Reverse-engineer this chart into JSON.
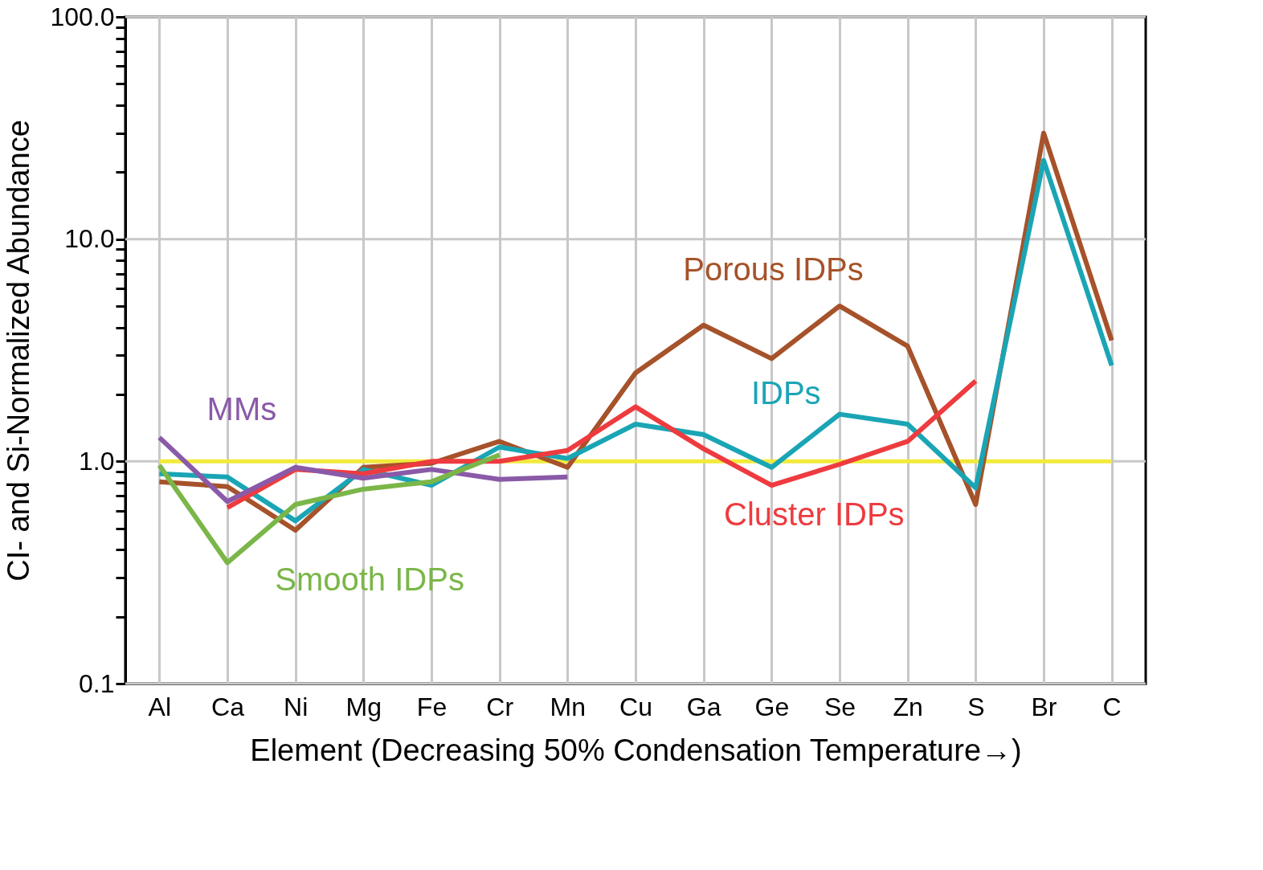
{
  "chart_data": {
    "type": "line",
    "xlabel": "Element (Decreasing 50% Condensation Temperature→)",
    "ylabel": "CI- and Si-Normalized Abundance",
    "categories": [
      "Al",
      "Ca",
      "Ni",
      "Mg",
      "Fe",
      "Cr",
      "Mn",
      "Cu",
      "Ga",
      "Ge",
      "Se",
      "Zn",
      "S",
      "Br",
      "C"
    ],
    "series": [
      {
        "name": "Porous IDPs",
        "color": "#a6522a",
        "values": [
          0.81,
          0.77,
          0.49,
          0.94,
          0.98,
          1.23,
          0.94,
          2.5,
          4.1,
          2.9,
          5.0,
          3.3,
          0.64,
          30,
          3.5
        ]
      },
      {
        "name": "IDPs",
        "color": "#1aa5b5",
        "values": [
          0.88,
          0.85,
          0.54,
          0.92,
          0.78,
          1.16,
          1.03,
          1.47,
          1.32,
          0.94,
          1.63,
          1.47,
          0.76,
          22.6,
          2.7
        ]
      },
      {
        "name": "Cluster IDPs",
        "color": "#ee3b3f",
        "values": [
          null,
          0.62,
          0.92,
          0.88,
          1.0,
          1.0,
          1.12,
          1.76,
          1.14,
          0.78,
          0.97,
          1.23,
          2.3,
          null,
          null
        ]
      },
      {
        "name": "MMs",
        "color": "#8a5aa8",
        "values": [
          1.28,
          0.66,
          0.94,
          0.84,
          0.92,
          0.83,
          0.85,
          null,
          null,
          null,
          null,
          null,
          null,
          null,
          null
        ]
      },
      {
        "name": "Smooth IDPs",
        "color": "#7ab648",
        "values": [
          0.96,
          0.35,
          0.64,
          0.75,
          0.81,
          1.07,
          null,
          null,
          null,
          null,
          null,
          null,
          null,
          null,
          null
        ]
      }
    ],
    "ref_lines": [
      {
        "axis": "y",
        "value": 1.0,
        "color": "#f2ea3a"
      }
    ],
    "log": "y",
    "ylim": [
      0.1,
      100
    ],
    "yticks": [
      {
        "value": 0.1,
        "label": "0.1"
      },
      {
        "value": 0.2,
        "label": null
      },
      {
        "value": 0.3,
        "label": null
      },
      {
        "value": 0.4,
        "label": null
      },
      {
        "value": 0.5,
        "label": null
      },
      {
        "value": 0.6,
        "label": null
      },
      {
        "value": 0.7,
        "label": null
      },
      {
        "value": 0.8,
        "label": null
      },
      {
        "value": 0.9,
        "label": null
      },
      {
        "value": 1,
        "label": "1.0"
      },
      {
        "value": 2,
        "label": null
      },
      {
        "value": 3,
        "label": null
      },
      {
        "value": 4,
        "label": null
      },
      {
        "value": 5,
        "label": null
      },
      {
        "value": 6,
        "label": null
      },
      {
        "value": 7,
        "label": null
      },
      {
        "value": 8,
        "label": null
      },
      {
        "value": 9,
        "label": null
      },
      {
        "value": 10,
        "label": "10.0"
      },
      {
        "value": 20,
        "label": null
      },
      {
        "value": 30,
        "label": null
      },
      {
        "value": 40,
        "label": null
      },
      {
        "value": 50,
        "label": null
      },
      {
        "value": 60,
        "label": null
      },
      {
        "value": 70,
        "label": null
      },
      {
        "value": 80,
        "label": null
      },
      {
        "value": 90,
        "label": null
      },
      {
        "value": 100,
        "label": "100.0"
      }
    ],
    "grid": true,
    "line_style": "solid",
    "marker": "none"
  }
}
